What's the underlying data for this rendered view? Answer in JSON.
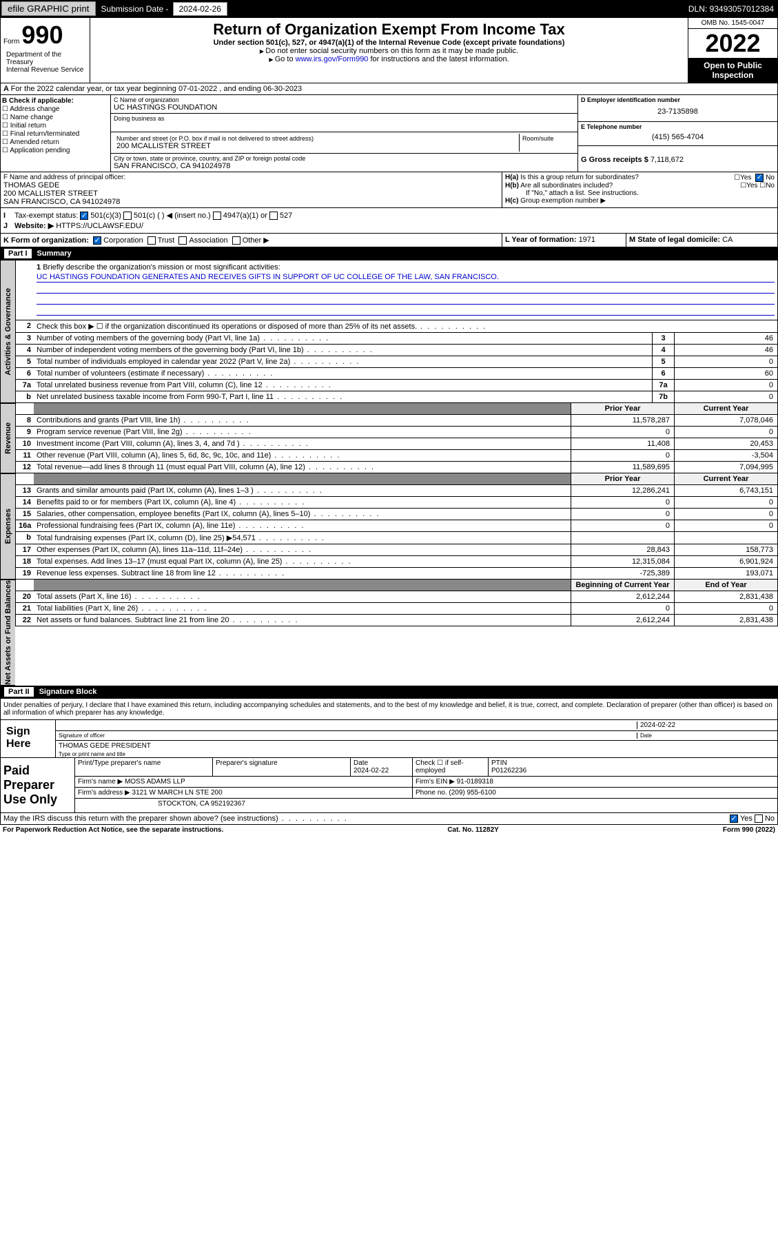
{
  "topbar": {
    "efile": "efile GRAPHIC print",
    "sub_lbl": "Submission Date - ",
    "sub_date": "2024-02-26",
    "dln": "DLN: 93493057012384"
  },
  "header": {
    "form": "Form",
    "num": "990",
    "title": "Return of Organization Exempt From Income Tax",
    "sub": "Under section 501(c), 527, or 4947(a)(1) of the Internal Revenue Code (except private foundations)",
    "note1": "Do not enter social security numbers on this form as it may be made public.",
    "note2_pre": "Go to ",
    "note2_link": "www.irs.gov/Form990",
    "note2_post": " for instructions and the latest information.",
    "omb": "OMB No. 1545-0047",
    "year": "2022",
    "open": "Open to Public Inspection",
    "dept": "Department of the Treasury\nInternal Revenue Service"
  },
  "period": "For the 2022 calendar year, or tax year beginning 07-01-2022   , and ending 06-30-2023",
  "b": {
    "lbl": "B Check if applicable:",
    "opts": [
      "Address change",
      "Name change",
      "Initial return",
      "Final return/terminated",
      "Amended return",
      "Application pending"
    ]
  },
  "c": {
    "name_lbl": "C Name of organization",
    "name": "UC HASTINGS FOUNDATION",
    "dba_lbl": "Doing business as",
    "dba": "",
    "addr_lbl": "Number and street (or P.O. box if mail is not delivered to street address)",
    "room_lbl": "Room/suite",
    "addr": "200 MCALLISTER STREET",
    "city_lbl": "City or town, state or province, country, and ZIP or foreign postal code",
    "city": "SAN FRANCISCO, CA  941024978"
  },
  "d": {
    "ein_lbl": "D Employer identification number",
    "ein": "23-7135898",
    "tel_lbl": "E Telephone number",
    "tel": "(415) 565-4704",
    "gross_lbl": "G Gross receipts $ ",
    "gross": "7,118,672"
  },
  "f": {
    "lbl": "F Name and address of principal officer:",
    "name": "THOMAS GEDE",
    "addr": "200 MCALLISTER STREET\nSAN FRANCISCO, CA  941024978"
  },
  "h": {
    "a": "Is this a group return for subordinates?",
    "b": "Are all subordinates included?",
    "bnote": "If \"No,\" attach a list. See instructions.",
    "c": "Group exemption number ▶"
  },
  "i": {
    "lbl": "Tax-exempt status:",
    "opts": [
      "501(c)(3)",
      "501(c) (  ) ◀ (insert no.)",
      "4947(a)(1) or",
      "527"
    ]
  },
  "j": {
    "lbl": "Website: ▶",
    "val": "HTTPS://UCLAWSF.EDU/"
  },
  "k": {
    "lbl": "K Form of organization:",
    "opts": [
      "Corporation",
      "Trust",
      "Association",
      "Other ▶"
    ]
  },
  "l": {
    "lbl": "L Year of formation: ",
    "val": "1971"
  },
  "m": {
    "lbl": "M State of legal domicile: ",
    "val": "CA"
  },
  "part1": {
    "pn": "Part I",
    "title": "Summary"
  },
  "mission": {
    "lbl": "Briefly describe the organization's mission or most significant activities:",
    "txt": "UC HASTINGS FOUNDATION GENERATES AND RECEIVES GIFTS IN SUPPORT OF UC COLLEGE OF THE LAW, SAN FRANCISCO."
  },
  "gov": [
    {
      "n": "2",
      "t": "Check this box ▶ ☐  if the organization discontinued its operations or disposed of more than 25% of its net assets."
    },
    {
      "n": "3",
      "t": "Number of voting members of the governing body (Part VI, line 1a)",
      "nb": "3",
      "v": "46"
    },
    {
      "n": "4",
      "t": "Number of independent voting members of the governing body (Part VI, line 1b)",
      "nb": "4",
      "v": "46"
    },
    {
      "n": "5",
      "t": "Total number of individuals employed in calendar year 2022 (Part V, line 2a)",
      "nb": "5",
      "v": "0"
    },
    {
      "n": "6",
      "t": "Total number of volunteers (estimate if necessary)",
      "nb": "6",
      "v": "60"
    },
    {
      "n": "7a",
      "t": "Total unrelated business revenue from Part VIII, column (C), line 12",
      "nb": "7a",
      "v": "0"
    },
    {
      "n": "b",
      "t": "Net unrelated business taxable income from Form 990-T, Part I, line 11",
      "nb": "7b",
      "v": "0"
    }
  ],
  "pyhdr": "Prior Year",
  "cyhdr": "Current Year",
  "rev": [
    {
      "n": "8",
      "t": "Contributions and grants (Part VIII, line 1h)",
      "p": "11,578,287",
      "c": "7,078,046"
    },
    {
      "n": "9",
      "t": "Program service revenue (Part VIII, line 2g)",
      "p": "0",
      "c": "0"
    },
    {
      "n": "10",
      "t": "Investment income (Part VIII, column (A), lines 3, 4, and 7d )",
      "p": "11,408",
      "c": "20,453"
    },
    {
      "n": "11",
      "t": "Other revenue (Part VIII, column (A), lines 5, 6d, 8c, 9c, 10c, and 11e)",
      "p": "0",
      "c": "-3,504"
    },
    {
      "n": "12",
      "t": "Total revenue—add lines 8 through 11 (must equal Part VIII, column (A), line 12)",
      "p": "11,589,695",
      "c": "7,094,995"
    }
  ],
  "exp": [
    {
      "n": "13",
      "t": "Grants and similar amounts paid (Part IX, column (A), lines 1–3 )",
      "p": "12,286,241",
      "c": "6,743,151"
    },
    {
      "n": "14",
      "t": "Benefits paid to or for members (Part IX, column (A), line 4)",
      "p": "0",
      "c": "0"
    },
    {
      "n": "15",
      "t": "Salaries, other compensation, employee benefits (Part IX, column (A), lines 5–10)",
      "p": "0",
      "c": "0"
    },
    {
      "n": "16a",
      "t": "Professional fundraising fees (Part IX, column (A), line 11e)",
      "p": "0",
      "c": "0"
    },
    {
      "n": "b",
      "t": "Total fundraising expenses (Part IX, column (D), line 25) ▶54,571",
      "p": "",
      "c": ""
    },
    {
      "n": "17",
      "t": "Other expenses (Part IX, column (A), lines 11a–11d, 11f–24e)",
      "p": "28,843",
      "c": "158,773"
    },
    {
      "n": "18",
      "t": "Total expenses. Add lines 13–17 (must equal Part IX, column (A), line 25)",
      "p": "12,315,084",
      "c": "6,901,924"
    },
    {
      "n": "19",
      "t": "Revenue less expenses. Subtract line 18 from line 12",
      "p": "-725,389",
      "c": "193,071"
    }
  ],
  "byhdr": "Beginning of Current Year",
  "eyhdr": "End of Year",
  "na": [
    {
      "n": "20",
      "t": "Total assets (Part X, line 16)",
      "p": "2,612,244",
      "c": "2,831,438"
    },
    {
      "n": "21",
      "t": "Total liabilities (Part X, line 26)",
      "p": "0",
      "c": "0"
    },
    {
      "n": "22",
      "t": "Net assets or fund balances. Subtract line 21 from line 20",
      "p": "2,612,244",
      "c": "2,831,438"
    }
  ],
  "part2": {
    "pn": "Part II",
    "title": "Signature Block"
  },
  "sig": {
    "disclaim": "Under penalties of perjury, I declare that I have examined this return, including accompanying schedules and statements, and to the best of my knowledge and belief, it is true, correct, and complete. Declaration of preparer (other than officer) is based on all information of which preparer has any knowledge.",
    "here": "Sign Here",
    "sig_lbl": "Signature of officer",
    "date_lbl": "Date",
    "date": "2024-02-22",
    "name": "THOMAS GEDE PRESIDENT",
    "name_lbl": "Type or print name and title"
  },
  "prep": {
    "lbl": "Paid Preparer Use Only",
    "h": [
      "Print/Type preparer's name",
      "Preparer's signature",
      "Date",
      "Check ☐ if self-employed",
      "PTIN"
    ],
    "r1": [
      "",
      "",
      "2024-02-22",
      "",
      "P01262236"
    ],
    "firm_lbl": "Firm's name    ▶",
    "firm": "MOSS ADAMS LLP",
    "ein_lbl": "Firm's EIN ▶",
    "ein": "91-0189318",
    "addr_lbl": "Firm's address ▶",
    "addr": "3121 W MARCH LN STE 200",
    "addr2": "STOCKTON, CA  952192367",
    "ph_lbl": "Phone no.",
    "ph": "(209) 955-6100"
  },
  "may": "May the IRS discuss this return with the preparer shown above? (see instructions)",
  "foot": {
    "l": "For Paperwork Reduction Act Notice, see the separate instructions.",
    "c": "Cat. No. 11282Y",
    "r": "Form 990 (2022)"
  }
}
